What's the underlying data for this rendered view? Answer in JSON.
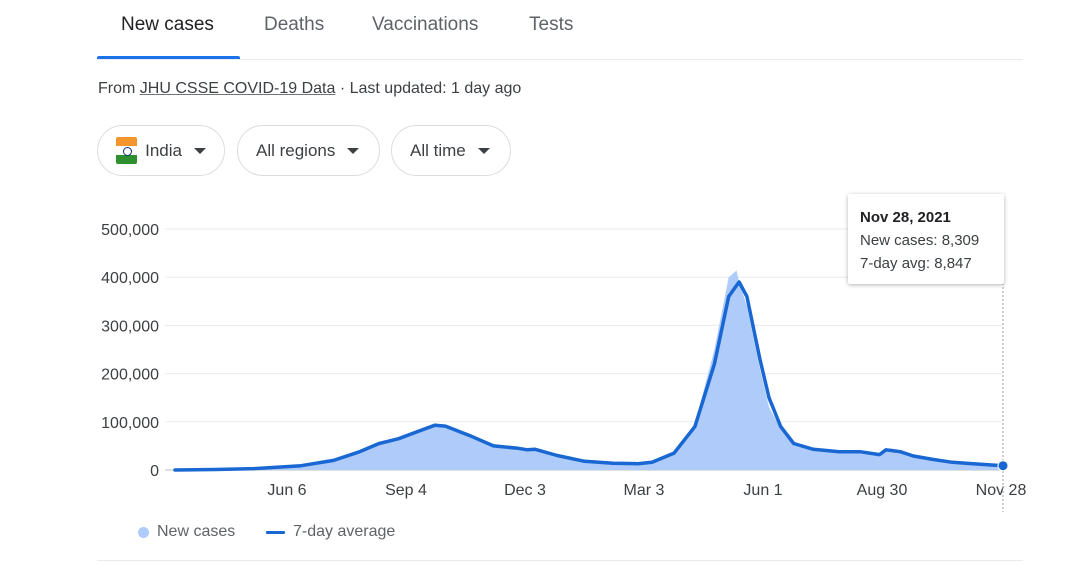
{
  "tabs": [
    {
      "label": "New cases",
      "active": true
    },
    {
      "label": "Deaths",
      "active": false
    },
    {
      "label": "Vaccinations",
      "active": false
    },
    {
      "label": "Tests",
      "active": false
    }
  ],
  "source": {
    "prefix": "From ",
    "link": "JHU CSSE COVID-19 Data",
    "suffix": " · Last updated: 1 day ago"
  },
  "filters": {
    "country": "India",
    "region": "All regions",
    "time": "All time"
  },
  "tooltip": {
    "date": "Nov 28, 2021",
    "new_cases": "New cases: 8,309",
    "avg": "7-day avg: 8,847"
  },
  "legend": {
    "new_cases": "New cases",
    "avg": "7-day average"
  },
  "colors": {
    "bars": "#aecbfa",
    "line": "#1967d2",
    "accent": "#1a73e8"
  },
  "chart_data": {
    "type": "area",
    "ylim": [
      0,
      500000
    ],
    "y_ticks": [
      0,
      100000,
      200000,
      300000,
      400000,
      500000
    ],
    "y_tick_labels": [
      "0",
      "100,000",
      "200,000",
      "300,000",
      "400,000",
      "500,000"
    ],
    "x_tick_labels": [
      "Jun 6",
      "Sep 4",
      "Dec 3",
      "Mar 3",
      "Jun 1",
      "Aug 30",
      "Nov 28"
    ],
    "xlim": [
      "2020-03-01",
      "2021-11-28"
    ],
    "grid": true,
    "legend_position": "bottom-left",
    "series": [
      {
        "name": "7-day average",
        "points": [
          [
            "2020-03-01",
            0
          ],
          [
            "2020-04-01",
            1000
          ],
          [
            "2020-05-01",
            3000
          ],
          [
            "2020-06-06",
            9000
          ],
          [
            "2020-07-01",
            20000
          ],
          [
            "2020-07-20",
            37000
          ],
          [
            "2020-08-05",
            55000
          ],
          [
            "2020-08-20",
            65000
          ],
          [
            "2020-09-04",
            80000
          ],
          [
            "2020-09-17",
            93000
          ],
          [
            "2020-09-25",
            91000
          ],
          [
            "2020-10-15",
            70000
          ],
          [
            "2020-11-01",
            50000
          ],
          [
            "2020-11-20",
            45000
          ],
          [
            "2020-11-27",
            42000
          ],
          [
            "2020-12-03",
            43000
          ],
          [
            "2020-12-20",
            30000
          ],
          [
            "2021-01-10",
            18000
          ],
          [
            "2021-02-01",
            14000
          ],
          [
            "2021-02-20",
            13000
          ],
          [
            "2021-03-03",
            16000
          ],
          [
            "2021-03-20",
            35000
          ],
          [
            "2021-04-05",
            90000
          ],
          [
            "2021-04-20",
            220000
          ],
          [
            "2021-05-01",
            360000
          ],
          [
            "2021-05-09",
            390000
          ],
          [
            "2021-05-15",
            360000
          ],
          [
            "2021-05-25",
            230000
          ],
          [
            "2021-06-01",
            150000
          ],
          [
            "2021-06-10",
            90000
          ],
          [
            "2021-06-20",
            55000
          ],
          [
            "2021-07-05",
            43000
          ],
          [
            "2021-07-25",
            38000
          ],
          [
            "2021-08-10",
            38000
          ],
          [
            "2021-08-25",
            32000
          ],
          [
            "2021-08-30",
            42000
          ],
          [
            "2021-09-10",
            38000
          ],
          [
            "2021-09-20",
            29000
          ],
          [
            "2021-10-05",
            22000
          ],
          [
            "2021-10-20",
            16000
          ],
          [
            "2021-11-05",
            13000
          ],
          [
            "2021-11-28",
            8847
          ]
        ]
      },
      {
        "name": "New cases",
        "points": [
          [
            "2020-03-01",
            0
          ],
          [
            "2020-04-01",
            1200
          ],
          [
            "2020-05-01",
            3300
          ],
          [
            "2020-06-06",
            9500
          ],
          [
            "2020-07-01",
            21000
          ],
          [
            "2020-07-20",
            38000
          ],
          [
            "2020-08-05",
            56000
          ],
          [
            "2020-08-20",
            66000
          ],
          [
            "2020-09-04",
            83000
          ],
          [
            "2020-09-17",
            97000
          ],
          [
            "2020-09-25",
            90000
          ],
          [
            "2020-10-15",
            71000
          ],
          [
            "2020-11-01",
            50000
          ],
          [
            "2020-11-20",
            46000
          ],
          [
            "2020-11-27",
            43000
          ],
          [
            "2020-12-03",
            42000
          ],
          [
            "2020-12-20",
            30000
          ],
          [
            "2021-01-10",
            18000
          ],
          [
            "2021-02-01",
            14000
          ],
          [
            "2021-02-20",
            13500
          ],
          [
            "2021-03-03",
            17000
          ],
          [
            "2021-03-20",
            37000
          ],
          [
            "2021-04-05",
            95000
          ],
          [
            "2021-04-20",
            250000
          ],
          [
            "2021-05-01",
            400000
          ],
          [
            "2021-05-07",
            414000
          ],
          [
            "2021-05-09",
            390000
          ],
          [
            "2021-05-15",
            340000
          ],
          [
            "2021-05-25",
            210000
          ],
          [
            "2021-06-01",
            130000
          ],
          [
            "2021-06-10",
            85000
          ],
          [
            "2021-06-20",
            55000
          ],
          [
            "2021-07-05",
            43000
          ],
          [
            "2021-07-25",
            38000
          ],
          [
            "2021-08-10",
            39000
          ],
          [
            "2021-08-25",
            34000
          ],
          [
            "2021-08-30",
            42000
          ],
          [
            "2021-09-10",
            38000
          ],
          [
            "2021-09-20",
            30000
          ],
          [
            "2021-10-05",
            22000
          ],
          [
            "2021-10-20",
            16000
          ],
          [
            "2021-11-05",
            13000
          ],
          [
            "2021-11-28",
            8309
          ]
        ]
      }
    ]
  }
}
